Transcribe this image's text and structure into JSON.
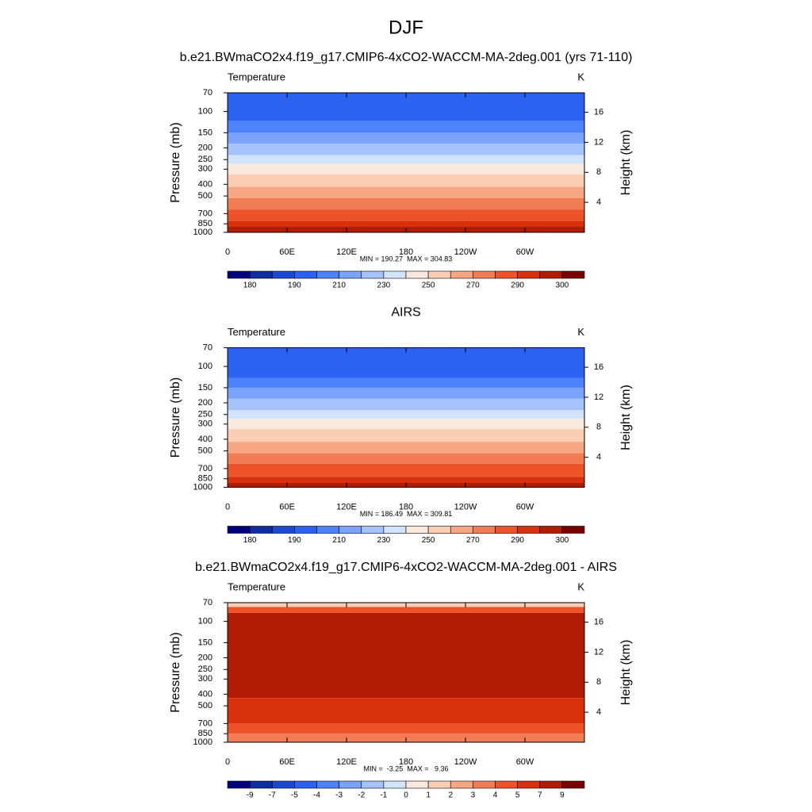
{
  "suptitle": "DJF",
  "chart_data": [
    {
      "type": "contour",
      "title": "b.e21.BWmaCO2x4.f19_g17.CMIP6-4xCO2-WACCM-MA-2deg.001 (yrs 71-110)",
      "left_label": "Temperature",
      "right_label": "K",
      "stats": "MIN = 190.27  MAX = 304.83",
      "ylabel": "Pressure (mb)",
      "y2label": "Height (km)",
      "ylog": true,
      "xlim": [
        0,
        360
      ],
      "xticks": [
        0,
        {
          "value": 60,
          "label": "60E"
        },
        {
          "value": 120,
          "label": "120E"
        },
        180,
        {
          "value": 240,
          "label": "120W"
        },
        {
          "value": 300,
          "label": "60W"
        }
      ],
      "ylim": [
        1000,
        70
      ],
      "yticks": [
        70,
        100,
        150,
        200,
        250,
        300,
        400,
        500,
        700,
        850,
        1000
      ],
      "y2lim": [
        0,
        18.6
      ],
      "y2ticks": [
        4,
        8,
        12,
        16
      ],
      "bands": {
        "pressure": [
          1000,
          900,
          800,
          650,
          520,
          420,
          330,
          270,
          230,
          185,
          150,
          120,
          70
        ],
        "values": [
          295,
          288,
          280,
          268,
          258,
          248,
          238,
          228,
          218,
          210,
          205,
          198
        ],
        "colors": [
          "#b01c04",
          "#d8300c",
          "#ee5228",
          "#f27d55",
          "#f7a683",
          "#fbcdb2",
          "#fbe8dc",
          "#d2e3ff",
          "#a7c3fc",
          "#7ba3fb",
          "#4c82fb",
          "#2c62f2"
        ]
      },
      "colorbar": {
        "colors": [
          "#00007f",
          "#0f2ca0",
          "#1c48d4",
          "#2c62f2",
          "#4c82fb",
          "#7ba3fb",
          "#a7c3fc",
          "#d2e3ff",
          "#fbe8dc",
          "#fbcdb2",
          "#f7a683",
          "#f27d55",
          "#ee5228",
          "#d8300c",
          "#b01c04",
          "#7a0000"
        ],
        "levels": [
          180,
          null,
          190,
          null,
          210,
          null,
          230,
          null,
          250,
          null,
          270,
          null,
          290,
          null,
          300
        ]
      }
    },
    {
      "type": "contour",
      "title": "AIRS",
      "left_label": "Temperature",
      "right_label": "K",
      "stats": "MIN = 186.49  MAX = 309.81",
      "ylabel": "Pressure (mb)",
      "y2label": "Height (km)",
      "ylog": true,
      "xlim": [
        0,
        360
      ],
      "xticks": [
        0,
        {
          "value": 60,
          "label": "60E"
        },
        {
          "value": 120,
          "label": "120E"
        },
        180,
        {
          "value": 240,
          "label": "120W"
        },
        {
          "value": 300,
          "label": "60W"
        }
      ],
      "ylim": [
        1000,
        70
      ],
      "yticks": [
        70,
        100,
        150,
        200,
        250,
        300,
        400,
        500,
        700,
        850,
        1000
      ],
      "y2lim": [
        0,
        18.6
      ],
      "y2ticks": [
        4,
        8,
        12,
        16
      ],
      "bands": {
        "pressure": [
          1000,
          920,
          820,
          640,
          520,
          420,
          330,
          270,
          230,
          185,
          150,
          125,
          70
        ],
        "values": [
          295,
          288,
          280,
          268,
          258,
          248,
          238,
          228,
          218,
          210,
          205,
          198
        ],
        "colors": [
          "#b01c04",
          "#d8300c",
          "#ee5228",
          "#f27d55",
          "#f7a683",
          "#fbcdb2",
          "#fbe8dc",
          "#d2e3ff",
          "#a7c3fc",
          "#7ba3fb",
          "#4c82fb",
          "#2c62f2"
        ]
      },
      "colorbar": {
        "colors": [
          "#00007f",
          "#0f2ca0",
          "#1c48d4",
          "#2c62f2",
          "#4c82fb",
          "#7ba3fb",
          "#a7c3fc",
          "#d2e3ff",
          "#fbe8dc",
          "#fbcdb2",
          "#f7a683",
          "#f27d55",
          "#ee5228",
          "#d8300c",
          "#b01c04",
          "#7a0000"
        ],
        "levels": [
          180,
          null,
          190,
          null,
          210,
          null,
          230,
          null,
          250,
          null,
          270,
          null,
          290,
          null,
          300
        ]
      }
    },
    {
      "type": "contour",
      "title": "b.e21.BWmaCO2x4.f19_g17.CMIP6-4xCO2-WACCM-MA-2deg.001 - AIRS",
      "left_label": "Temperature",
      "right_label": "K",
      "stats": "MIN =  -3.25  MAX =   9.36",
      "ylabel": "Pressure (mb)",
      "y2label": "Height (km)",
      "ylog": true,
      "xlim": [
        0,
        360
      ],
      "xticks": [
        0,
        {
          "value": 60,
          "label": "60E"
        },
        {
          "value": 120,
          "label": "120E"
        },
        180,
        {
          "value": 240,
          "label": "120W"
        },
        {
          "value": 300,
          "label": "60W"
        }
      ],
      "ylim": [
        1000,
        70
      ],
      "yticks": [
        70,
        100,
        150,
        200,
        250,
        300,
        400,
        500,
        700,
        850,
        1000
      ],
      "y2lim": [
        0,
        18.6
      ],
      "y2ticks": [
        4,
        8,
        12,
        16
      ],
      "bands": {
        "pressure": [
          1000,
          850,
          700,
          430,
          85,
          76,
          70
        ],
        "values": [
          3.5,
          4.5,
          6,
          8,
          4.5,
          1.5
        ],
        "colors": [
          "#f27d55",
          "#ee5228",
          "#d8300c",
          "#b01c04",
          "#ee5228",
          "#fbcdb2"
        ]
      },
      "colorbar": {
        "colors": [
          "#00007f",
          "#0f2ca0",
          "#1c48d4",
          "#2c62f2",
          "#4c82fb",
          "#7ba3fb",
          "#a7c3fc",
          "#d2e3ff",
          "#fbe8dc",
          "#fbcdb2",
          "#f7a683",
          "#f27d55",
          "#ee5228",
          "#d8300c",
          "#b01c04",
          "#7a0000"
        ],
        "levels": [
          -9,
          -7,
          -5,
          -4,
          -3,
          -2,
          -1,
          0,
          1,
          2,
          3,
          4,
          5,
          7,
          9
        ]
      }
    }
  ]
}
